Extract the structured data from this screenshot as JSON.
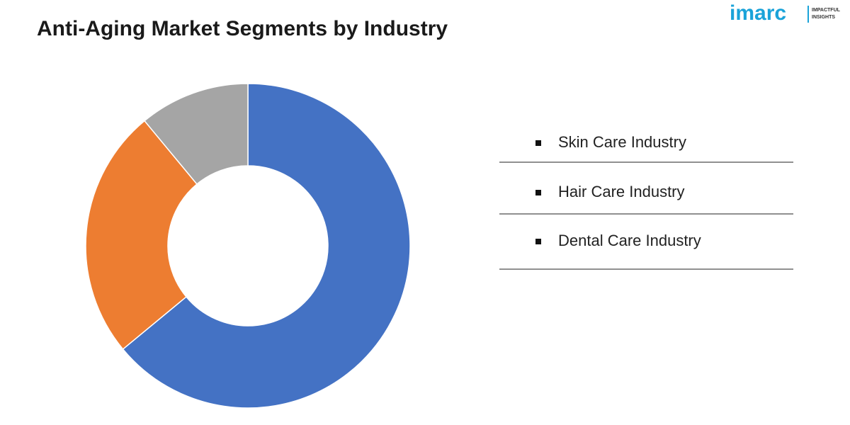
{
  "chart_data": {
    "type": "donut",
    "title": "Anti-Aging Market Segments by Industry",
    "categories": [
      "Skin Care Industry",
      "Hair Care Industry",
      "Dental Care Industry"
    ],
    "values": [
      64,
      25,
      11
    ],
    "colors": [
      "#4472c4",
      "#ed7d31",
      "#a5a5a5"
    ]
  },
  "logo": {
    "name": "imarc",
    "tagline": [
      "IMPACTFUL",
      "INSIGHTS"
    ]
  }
}
